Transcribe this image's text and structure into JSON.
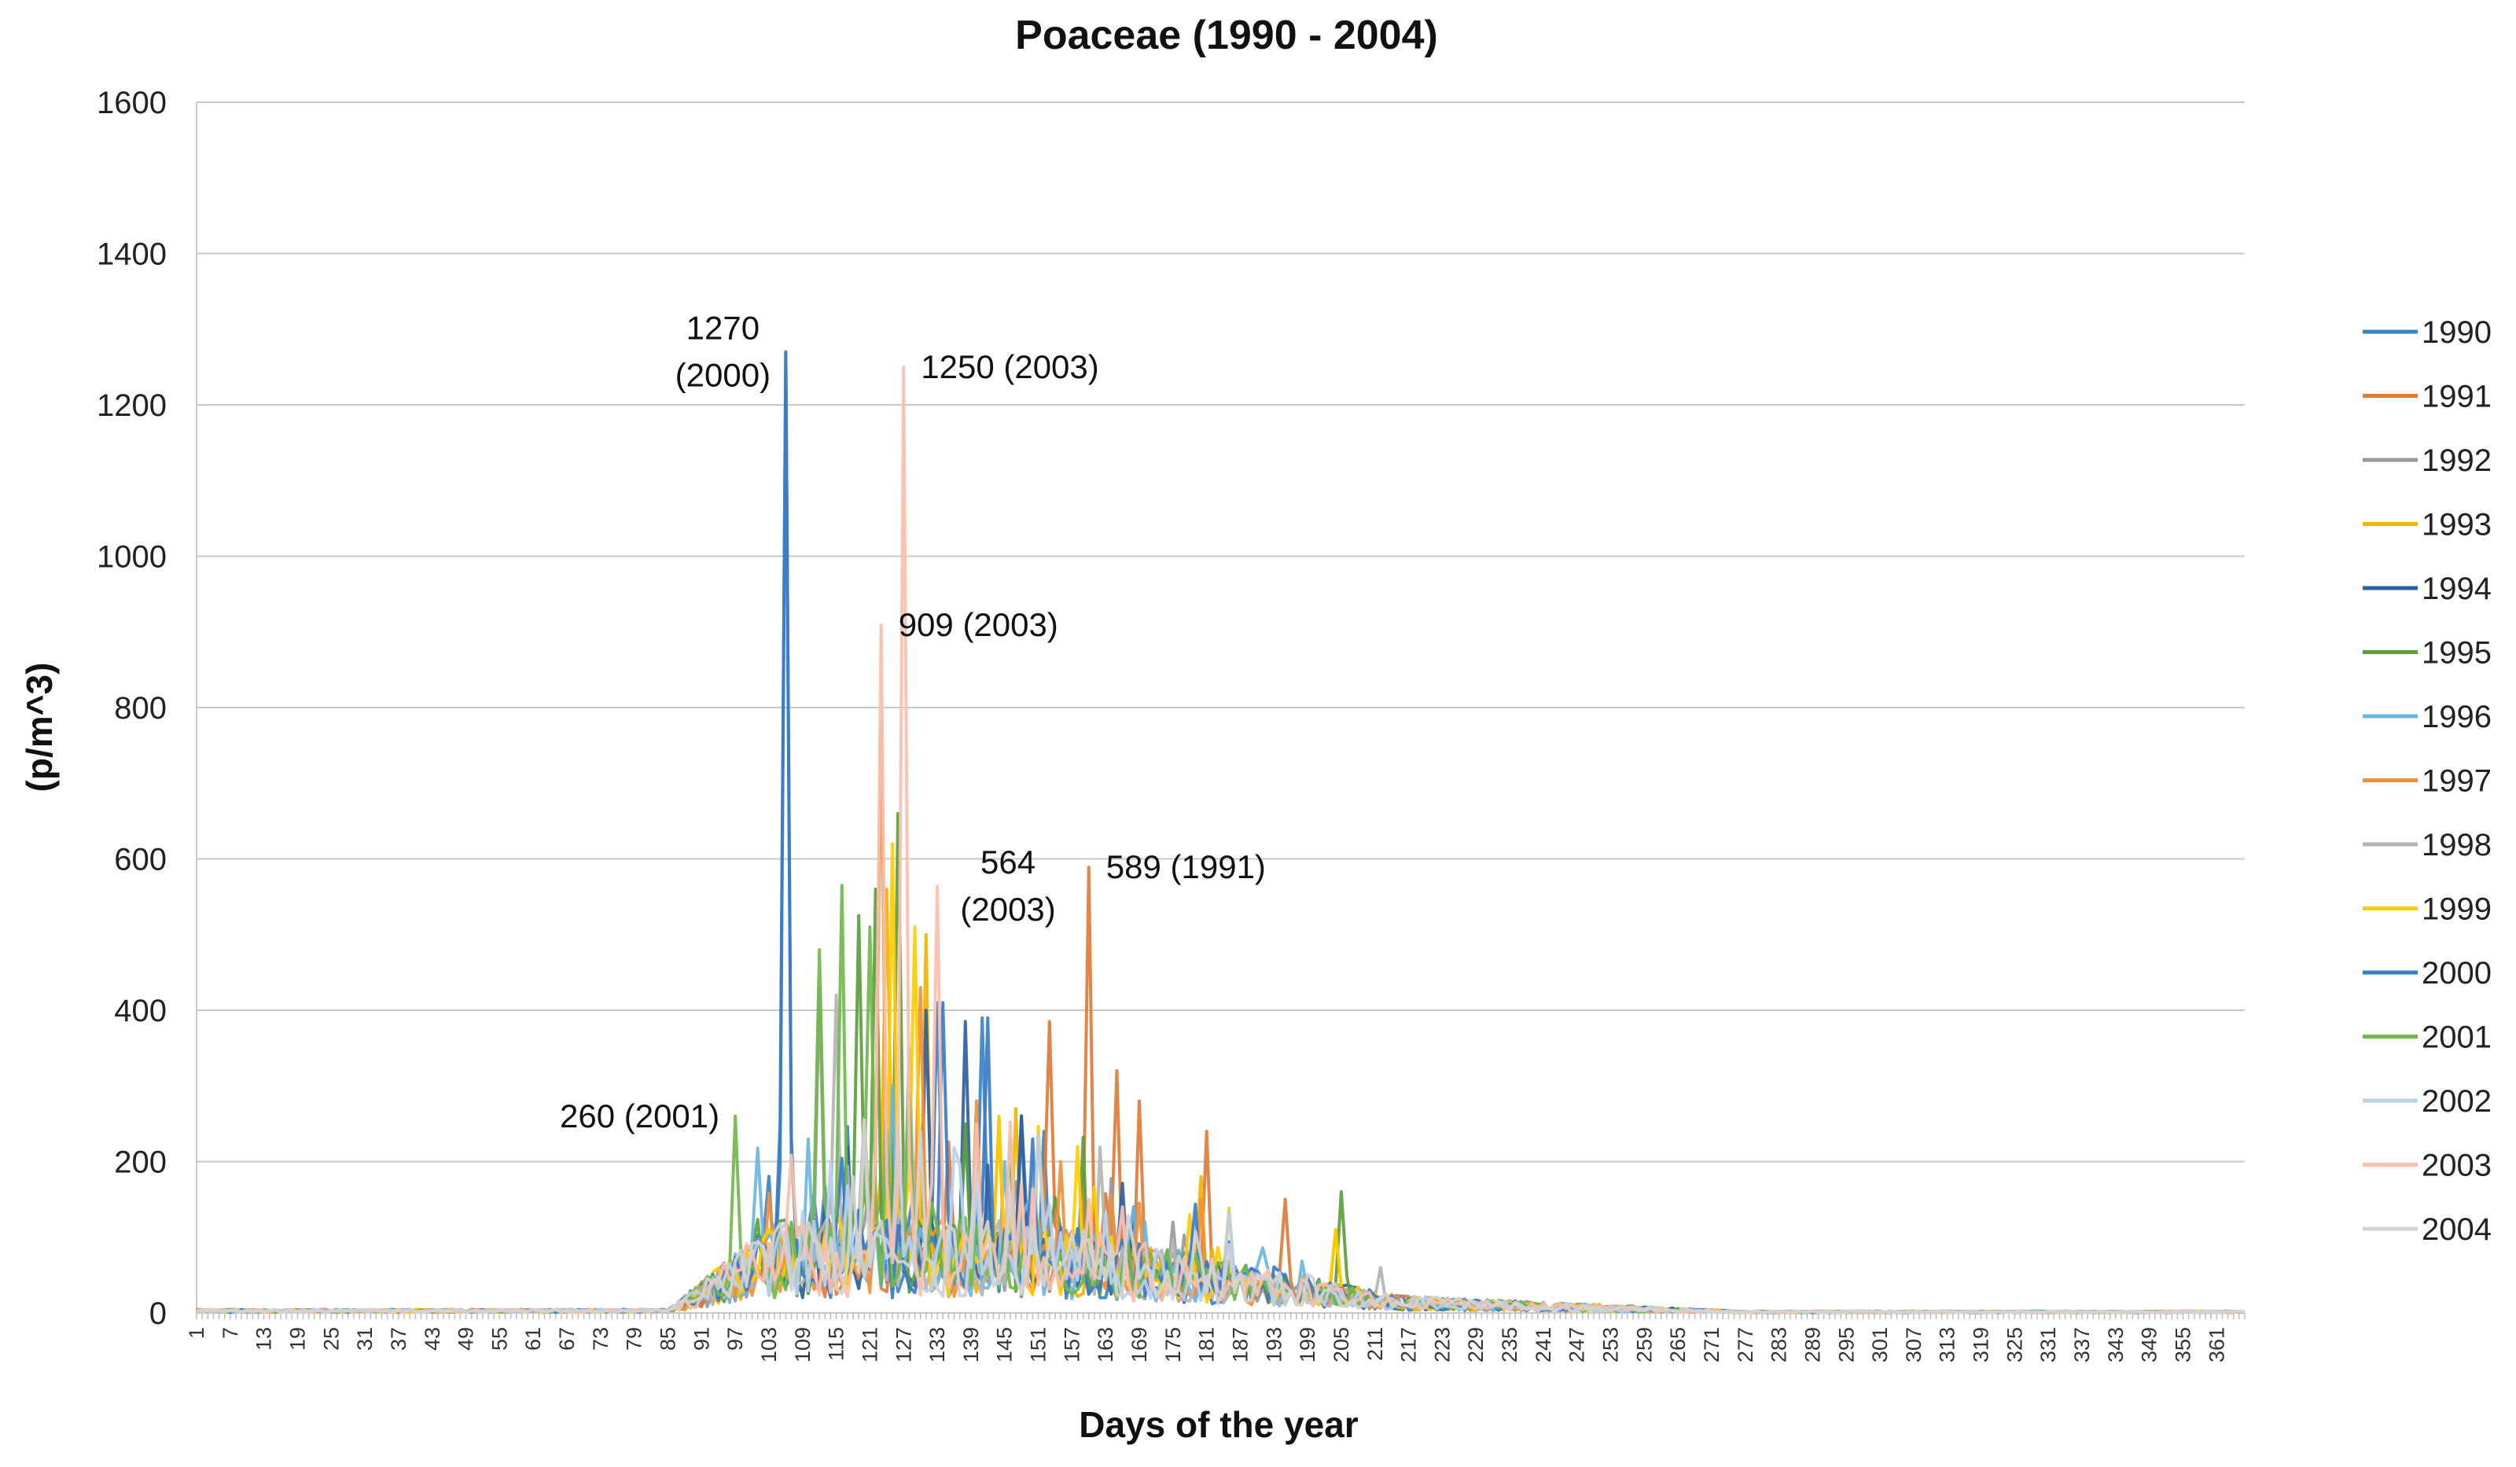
{
  "chart_data": {
    "type": "line",
    "title": "Poaceae (1990 - 2004)",
    "xlabel": "Days of the year",
    "ylabel": "(p/m^3)",
    "ylim": [
      0,
      1600
    ],
    "yticks": [
      0,
      200,
      400,
      600,
      800,
      1000,
      1200,
      1400,
      1600
    ],
    "xlim": [
      1,
      366
    ],
    "xtick_start": 1,
    "xtick_step": 6,
    "xtick_end": 361,
    "grid": "horizontal",
    "legend_position": "right",
    "series": [
      {
        "name": "1990",
        "color": "#3b83c4",
        "peaks": [
          [
            106,
            1270
          ],
          [
            133,
            410
          ],
          [
            141,
            390
          ],
          [
            152,
            240
          ]
        ]
      },
      {
        "name": "1991",
        "color": "#e07b39",
        "peaks": [
          [
            160,
            589
          ],
          [
            153,
            385
          ],
          [
            165,
            320
          ],
          [
            169,
            280
          ],
          [
            181,
            240
          ],
          [
            195,
            150
          ]
        ]
      },
      {
        "name": "1992",
        "color": "#9a9a9a",
        "peaks": [
          [
            112,
            430
          ],
          [
            124,
            300
          ],
          [
            150,
            180
          ],
          [
            175,
            120
          ]
        ]
      },
      {
        "name": "1993",
        "color": "#f0b400",
        "peaks": [
          [
            124,
            560
          ],
          [
            131,
            500
          ],
          [
            147,
            270
          ],
          [
            180,
            180
          ],
          [
            204,
            110
          ]
        ]
      },
      {
        "name": "1994",
        "color": "#2e5f9e",
        "peaks": [
          [
            131,
            400
          ],
          [
            138,
            385
          ],
          [
            148,
            260
          ],
          [
            168,
            140
          ]
        ]
      },
      {
        "name": "1995",
        "color": "#5c9e3c",
        "peaks": [
          [
            119,
            525
          ],
          [
            122,
            560
          ],
          [
            126,
            660
          ],
          [
            138,
            250
          ],
          [
            205,
            160
          ]
        ]
      },
      {
        "name": "1996",
        "color": "#6cb6e0",
        "peaks": [
          [
            110,
            230
          ],
          [
            125,
            300
          ],
          [
            145,
            200
          ],
          [
            170,
            120
          ]
        ]
      },
      {
        "name": "1997",
        "color": "#f0903c",
        "peaks": [
          [
            123,
            780
          ],
          [
            130,
            430
          ],
          [
            140,
            280
          ],
          [
            155,
            200
          ]
        ]
      },
      {
        "name": "1998",
        "color": "#b4b4b4",
        "peaks": [
          [
            115,
            420
          ],
          [
            128,
            350
          ],
          [
            150,
            180
          ],
          [
            212,
            60
          ]
        ]
      },
      {
        "name": "1999",
        "color": "#ffcc00",
        "peaks": [
          [
            125,
            620
          ],
          [
            129,
            510
          ],
          [
            144,
            260
          ],
          [
            158,
            220
          ],
          [
            178,
            130
          ],
          [
            204,
            110
          ]
        ]
      },
      {
        "name": "2000",
        "color": "#3a7cc8",
        "peaks": [
          [
            106,
            1270
          ],
          [
            134,
            410
          ],
          [
            142,
            390
          ],
          [
            150,
            230
          ]
        ]
      },
      {
        "name": "2001",
        "color": "#70b84c",
        "peaks": [
          [
            97,
            260
          ],
          [
            112,
            480
          ],
          [
            116,
            565
          ],
          [
            121,
            510
          ],
          [
            128,
            290
          ],
          [
            160,
            120
          ]
        ]
      },
      {
        "name": "2002",
        "color": "#b8cfee",
        "peaks": [
          [
            114,
            200
          ],
          [
            126,
            250
          ],
          [
            140,
            170
          ],
          [
            163,
            130
          ]
        ]
      },
      {
        "name": "2003",
        "color": "#f8bfae",
        "peaks": [
          [
            123,
            909
          ],
          [
            127,
            1250
          ],
          [
            133,
            564
          ],
          [
            140,
            250
          ],
          [
            160,
            150
          ]
        ]
      },
      {
        "name": "2004",
        "color": "#d2d2d2",
        "peaks": [
          [
            118,
            180
          ],
          [
            130,
            240
          ],
          [
            146,
            160
          ],
          [
            185,
            90
          ]
        ]
      }
    ],
    "annotations": [
      {
        "lines": [
          "1270",
          "(2000)"
        ],
        "x": 106,
        "y": 1270,
        "anchor": "left-of"
      },
      {
        "lines": [
          "1250 (2003)"
        ],
        "x": 127,
        "y": 1250,
        "anchor": "right-of"
      },
      {
        "lines": [
          "909 (2003)"
        ],
        "x": 123,
        "y": 909,
        "anchor": "right-of"
      },
      {
        "lines": [
          "564",
          "(2003)"
        ],
        "x": 133,
        "y": 564,
        "anchor": "right-of"
      },
      {
        "lines": [
          "589 (1991)"
        ],
        "x": 160,
        "y": 589,
        "anchor": "right-of"
      },
      {
        "lines": [
          "260 (2001)"
        ],
        "x": 97,
        "y": 260,
        "anchor": "left-of"
      }
    ]
  }
}
